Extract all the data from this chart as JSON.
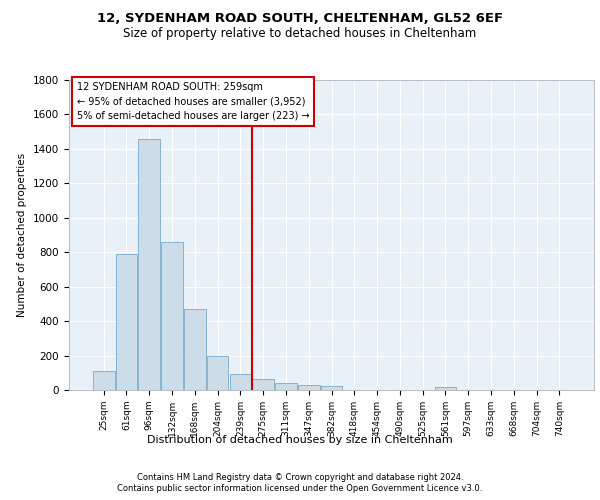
{
  "title1": "12, SYDENHAM ROAD SOUTH, CHELTENHAM, GL52 6EF",
  "title2": "Size of property relative to detached houses in Cheltenham",
  "xlabel": "Distribution of detached houses by size in Cheltenham",
  "ylabel": "Number of detached properties",
  "categories": [
    "25sqm",
    "61sqm",
    "96sqm",
    "132sqm",
    "168sqm",
    "204sqm",
    "239sqm",
    "275sqm",
    "311sqm",
    "347sqm",
    "382sqm",
    "418sqm",
    "454sqm",
    "490sqm",
    "525sqm",
    "561sqm",
    "597sqm",
    "633sqm",
    "668sqm",
    "704sqm",
    "740sqm"
  ],
  "values": [
    110,
    790,
    1460,
    860,
    470,
    200,
    95,
    65,
    40,
    28,
    22,
    0,
    0,
    0,
    0,
    20,
    0,
    0,
    0,
    0,
    0
  ],
  "bar_color": "#ccdce8",
  "bar_edge_color": "#7aaac8",
  "vline_color": "#cc0000",
  "vline_x": 6.5,
  "annotation_text": "12 SYDENHAM ROAD SOUTH: 259sqm\n← 95% of detached houses are smaller (3,952)\n5% of semi-detached houses are larger (223) →",
  "annotation_box_color": "#cc0000",
  "ylim": [
    0,
    1800
  ],
  "yticks": [
    0,
    200,
    400,
    600,
    800,
    1000,
    1200,
    1400,
    1600,
    1800
  ],
  "footer1": "Contains HM Land Registry data © Crown copyright and database right 2024.",
  "footer2": "Contains public sector information licensed under the Open Government Licence v3.0.",
  "plot_bg_color": "#e8f0f8",
  "grid_color": "#ffffff",
  "fig_bg_color": "#ffffff",
  "title1_fontsize": 9.5,
  "title2_fontsize": 8.5,
  "ylabel_fontsize": 7.5,
  "xlabel_fontsize": 8,
  "tick_fontsize": 6.5,
  "ytick_fontsize": 7.5,
  "ann_fontsize": 7,
  "footer_fontsize": 6
}
